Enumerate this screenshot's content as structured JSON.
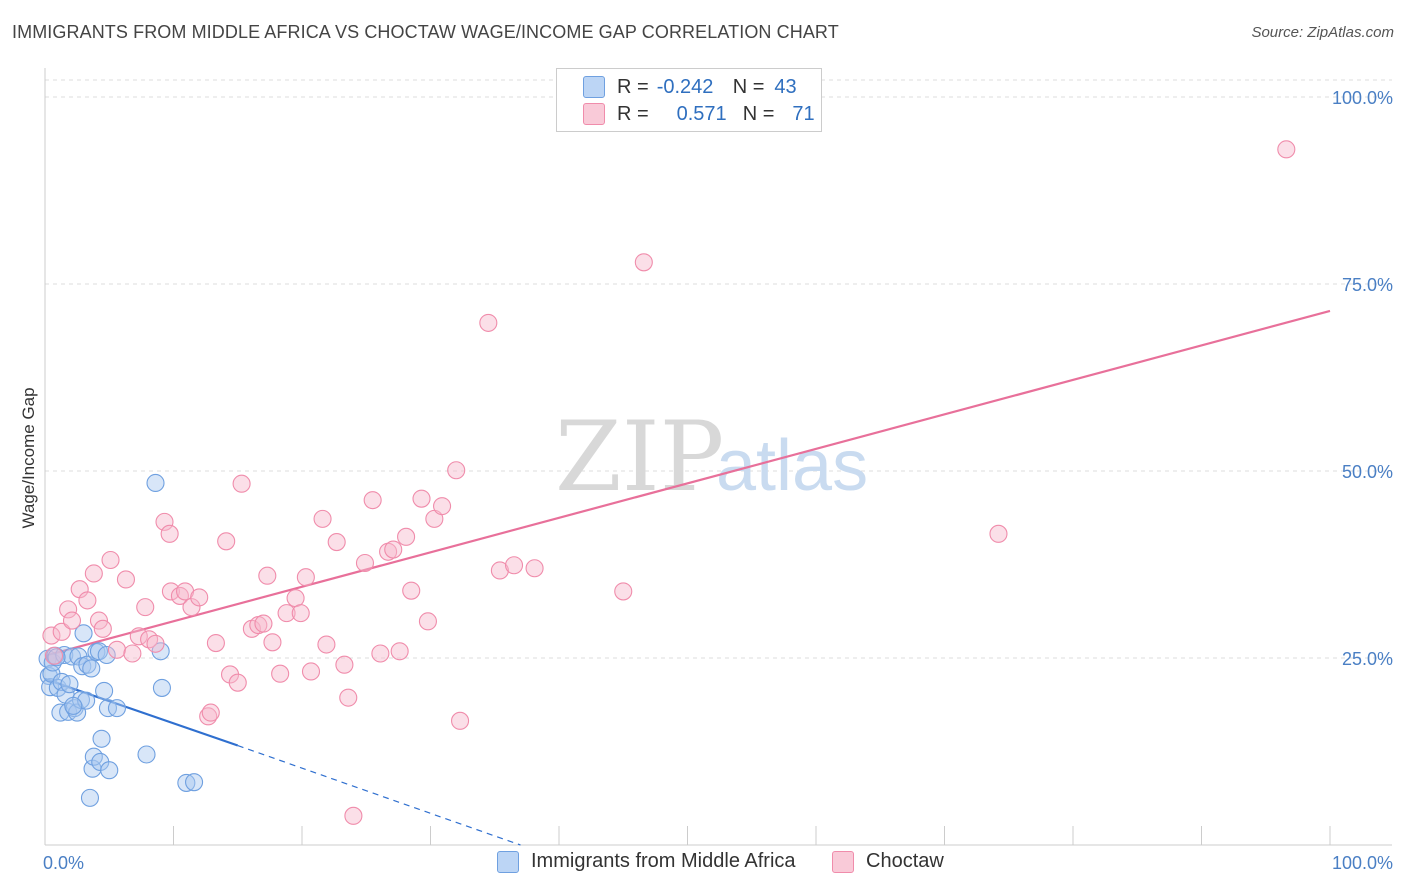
{
  "title": "IMMIGRANTS FROM MIDDLE AFRICA VS CHOCTAW WAGE/INCOME GAP CORRELATION CHART",
  "source": "Source: ZipAtlas.com",
  "watermark": {
    "zip": "ZIP",
    "atlas": "atlas"
  },
  "legend": {
    "rows": [
      {
        "r_label": "R =",
        "r_value": "-0.242",
        "n_label": "N =",
        "n_value": "43",
        "color": "#a9c8f0"
      },
      {
        "r_label": "R =",
        "r_value": "0.571",
        "n_label": "N =",
        "n_value": "71",
        "color": "#f6b8cb"
      }
    ]
  },
  "bottom_legend": [
    {
      "label": "Immigrants from Middle Africa",
      "color": "#a9c8f0"
    },
    {
      "label": "Choctaw",
      "color": "#f6b8cb"
    }
  ],
  "chart_data": {
    "type": "scatter",
    "title": "IMMIGRANTS FROM MIDDLE AFRICA VS CHOCTAW WAGE/INCOME GAP CORRELATION CHART",
    "xlabel": "",
    "ylabel": "Wage/Income Gap",
    "xlim": [
      0,
      100
    ],
    "ylim": [
      0,
      100
    ],
    "x_tick_labels": [
      "0.0%",
      "100.0%"
    ],
    "y_tick_labels": [
      "25.0%",
      "50.0%",
      "75.0%",
      "100.0%"
    ],
    "y_ticks": [
      25,
      50,
      75,
      100
    ],
    "series": [
      {
        "name": "Immigrants from Middle Africa",
        "color": "#6fa0e0",
        "fill": "#a9c8f0",
        "line_color": "#2f6fcf",
        "trend": {
          "x0": 0,
          "y0": 22.2,
          "x1": 15,
          "y1": 13.3,
          "dash_to_x": 37,
          "dash_to_y": 0
        },
        "points": [
          [
            0.2,
            24.9
          ],
          [
            0.3,
            22.6
          ],
          [
            0.4,
            21.1
          ],
          [
            0.5,
            22.9
          ],
          [
            0.6,
            24.4
          ],
          [
            0.8,
            25.3
          ],
          [
            1.0,
            21.0
          ],
          [
            1.2,
            17.7
          ],
          [
            1.3,
            21.8
          ],
          [
            1.5,
            25.4
          ],
          [
            1.6,
            20.1
          ],
          [
            1.8,
            17.8
          ],
          [
            1.9,
            21.5
          ],
          [
            2.1,
            25.2
          ],
          [
            2.3,
            18.3
          ],
          [
            2.5,
            17.7
          ],
          [
            2.6,
            25.2
          ],
          [
            2.8,
            19.4
          ],
          [
            2.9,
            23.9
          ],
          [
            3.0,
            28.3
          ],
          [
            3.2,
            19.3
          ],
          [
            3.3,
            24.1
          ],
          [
            3.5,
            6.3
          ],
          [
            3.6,
            23.6
          ],
          [
            3.7,
            10.2
          ],
          [
            3.8,
            11.8
          ],
          [
            4.0,
            25.8
          ],
          [
            4.2,
            25.9
          ],
          [
            4.3,
            11.1
          ],
          [
            4.4,
            14.2
          ],
          [
            4.6,
            20.6
          ],
          [
            4.8,
            25.4
          ],
          [
            4.9,
            18.3
          ],
          [
            5.0,
            10.0
          ],
          [
            5.6,
            18.3
          ],
          [
            7.9,
            12.1
          ],
          [
            8.6,
            48.4
          ],
          [
            9.0,
            25.9
          ],
          [
            9.1,
            21.0
          ],
          [
            11.0,
            8.3
          ],
          [
            11.6,
            8.4
          ],
          [
            0.9,
            25.1
          ],
          [
            2.2,
            18.6
          ]
        ]
      },
      {
        "name": "Choctaw",
        "color": "#f08cab",
        "fill": "#f6b8cb",
        "line_color": "#e8709a",
        "trend": {
          "x0": 0,
          "y0": 25.3,
          "x1": 100,
          "y1": 71.4
        },
        "points": [
          [
            0.5,
            28.0
          ],
          [
            0.7,
            25.3
          ],
          [
            1.3,
            28.5
          ],
          [
            1.8,
            31.5
          ],
          [
            2.1,
            30.0
          ],
          [
            2.7,
            34.2
          ],
          [
            3.3,
            32.7
          ],
          [
            3.8,
            36.3
          ],
          [
            4.2,
            30.0
          ],
          [
            4.5,
            28.9
          ],
          [
            5.1,
            38.1
          ],
          [
            5.6,
            26.1
          ],
          [
            6.3,
            35.5
          ],
          [
            6.8,
            25.6
          ],
          [
            7.3,
            27.9
          ],
          [
            7.8,
            31.8
          ],
          [
            8.1,
            27.5
          ],
          [
            8.6,
            26.9
          ],
          [
            9.3,
            43.2
          ],
          [
            9.7,
            41.6
          ],
          [
            9.8,
            33.9
          ],
          [
            10.5,
            33.3
          ],
          [
            10.9,
            33.9
          ],
          [
            11.4,
            31.8
          ],
          [
            12.0,
            33.1
          ],
          [
            12.7,
            17.2
          ],
          [
            12.9,
            17.7
          ],
          [
            13.3,
            27.0
          ],
          [
            14.1,
            40.6
          ],
          [
            14.4,
            22.8
          ],
          [
            15.0,
            21.7
          ],
          [
            15.3,
            48.3
          ],
          [
            16.1,
            28.9
          ],
          [
            16.6,
            29.4
          ],
          [
            17.0,
            29.6
          ],
          [
            17.3,
            36.0
          ],
          [
            17.7,
            27.1
          ],
          [
            18.3,
            22.9
          ],
          [
            18.8,
            31.0
          ],
          [
            19.5,
            33.0
          ],
          [
            19.9,
            31.0
          ],
          [
            20.3,
            35.8
          ],
          [
            20.7,
            23.2
          ],
          [
            21.6,
            43.6
          ],
          [
            21.9,
            26.8
          ],
          [
            22.7,
            40.5
          ],
          [
            23.3,
            24.1
          ],
          [
            23.6,
            19.7
          ],
          [
            24.0,
            3.9
          ],
          [
            24.9,
            37.7
          ],
          [
            25.5,
            46.1
          ],
          [
            26.1,
            25.6
          ],
          [
            26.7,
            39.2
          ],
          [
            27.1,
            39.5
          ],
          [
            27.6,
            25.9
          ],
          [
            28.1,
            41.2
          ],
          [
            28.5,
            34.0
          ],
          [
            29.3,
            46.3
          ],
          [
            29.8,
            29.9
          ],
          [
            30.3,
            43.6
          ],
          [
            30.9,
            45.3
          ],
          [
            32.0,
            50.1
          ],
          [
            32.3,
            16.6
          ],
          [
            34.5,
            69.8
          ],
          [
            35.4,
            36.7
          ],
          [
            36.5,
            37.4
          ],
          [
            38.1,
            37.0
          ],
          [
            45.0,
            33.9
          ],
          [
            46.6,
            77.9
          ],
          [
            74.2,
            41.6
          ],
          [
            96.6,
            93.0
          ]
        ]
      }
    ]
  }
}
